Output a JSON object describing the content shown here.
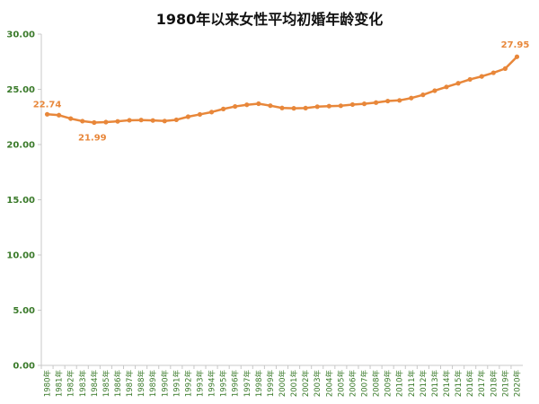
{
  "chart_data": {
    "type": "line",
    "title": "1980年以来女性平均初婚年龄变化",
    "xlabel": "",
    "ylabel": "",
    "ylim": [
      0,
      30
    ],
    "yticks": [
      "0.00",
      "5.00",
      "10.00",
      "15.00",
      "20.00",
      "25.00",
      "30.00"
    ],
    "grid": false,
    "categories": [
      "1980年",
      "1981年",
      "1982年",
      "1983年",
      "1984年",
      "1985年",
      "1986年",
      "1987年",
      "1988年",
      "1989年",
      "1990年",
      "1991年",
      "1992年",
      "1993年",
      "1994年",
      "1995年",
      "1996年",
      "1997年",
      "1998年",
      "1999年",
      "2000年",
      "2001年",
      "2002年",
      "2003年",
      "2004年",
      "2005年",
      "2006年",
      "2007年",
      "2008年",
      "2009年",
      "2010年",
      "2011年",
      "2012年",
      "2013年",
      "2014年",
      "2015年",
      "2016年",
      "2017年",
      "2018年",
      "2019年",
      "2020年"
    ],
    "series": [
      {
        "values": [
          22.74,
          22.66,
          22.35,
          22.12,
          21.99,
          22.03,
          22.1,
          22.2,
          22.22,
          22.18,
          22.13,
          22.24,
          22.52,
          22.73,
          22.94,
          23.22,
          23.45,
          23.6,
          23.7,
          23.52,
          23.31,
          23.28,
          23.3,
          23.43,
          23.48,
          23.51,
          23.62,
          23.69,
          23.8,
          23.94,
          24.0,
          24.21,
          24.5,
          24.88,
          25.22,
          25.55,
          25.9,
          26.17,
          26.5,
          26.88,
          27.95
        ],
        "labeled_points": [
          {
            "category": "1980年",
            "label": "22.74"
          },
          {
            "category": "1984年",
            "label": "21.99"
          },
          {
            "category": "2020年",
            "label": "27.95"
          }
        ]
      }
    ],
    "colors": {
      "line": "#e8873a",
      "axis_text": "#3a7a2a",
      "axis_line": "#c8c8c8"
    }
  }
}
